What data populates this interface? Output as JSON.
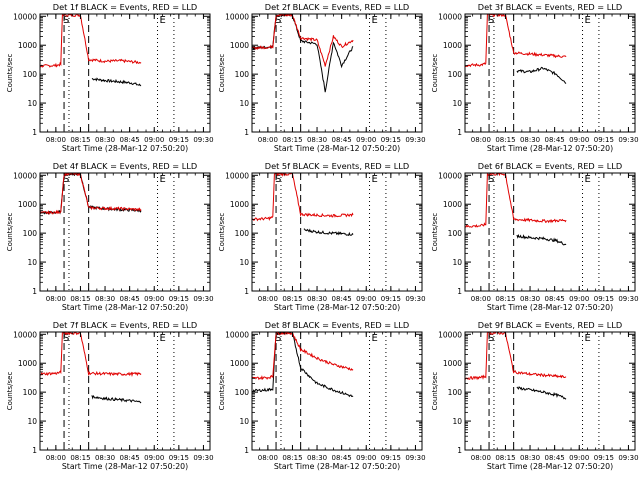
{
  "figure": {
    "ylabel": "Counts/sec",
    "xlabel": "Start Time (28-Mar-12 07:50:20)",
    "x_ticks": [
      "08:00",
      "08:15",
      "08:30",
      "08:45",
      "09:00",
      "09:15",
      "09:30"
    ],
    "y_ticks": [
      "1",
      "10",
      "100",
      "1000",
      "10000"
    ],
    "markers": [
      "S",
      "E"
    ],
    "colors": {
      "events": "#000000",
      "lld": "#e00000",
      "axis": "#000000"
    }
  },
  "chart_data": [
    {
      "type": "line",
      "title": "Det 1f BLACK = Events, RED = LLD",
      "y_scale": "log",
      "xlim": [
        "07:50:20",
        "09:34"
      ],
      "ylim": [
        1,
        12000
      ],
      "marker_lines": [
        {
          "x": "08:05",
          "style": "dashed"
        },
        {
          "x": "08:08",
          "style": "dotted"
        },
        {
          "x": "08:20",
          "style": "dashed"
        },
        {
          "x": "09:02",
          "style": "dotted"
        },
        {
          "x": "09:12",
          "style": "dotted"
        }
      ],
      "series": [
        {
          "name": "Events",
          "color": "#000000",
          "x": [
            "08:22",
            "08:30",
            "08:38",
            "08:46",
            "08:52"
          ],
          "values": [
            70,
            60,
            55,
            50,
            40
          ]
        },
        {
          "name": "LLD",
          "color": "#e00000",
          "x": [
            "07:50",
            "08:00",
            "08:03",
            "08:04",
            "08:15",
            "08:20",
            "08:30",
            "08:40",
            "08:52"
          ],
          "values": [
            190,
            200,
            220,
            11000,
            11000,
            320,
            280,
            290,
            250
          ]
        }
      ]
    },
    {
      "type": "line",
      "title": "Det 2f BLACK = Events, RED = LLD",
      "y_scale": "log",
      "xlim": [
        "07:50:20",
        "09:34"
      ],
      "ylim": [
        1,
        12000
      ],
      "marker_lines": [
        {
          "x": "08:05",
          "style": "dashed"
        },
        {
          "x": "08:08",
          "style": "dotted"
        },
        {
          "x": "08:20",
          "style": "dashed"
        },
        {
          "x": "09:02",
          "style": "dotted"
        },
        {
          "x": "09:12",
          "style": "dotted"
        }
      ],
      "series": [
        {
          "name": "Events",
          "color": "#000000",
          "x": [
            "07:50",
            "08:00",
            "08:03",
            "08:05",
            "08:15",
            "08:20",
            "08:30",
            "08:35",
            "08:40",
            "08:45",
            "08:52"
          ],
          "values": [
            800,
            850,
            900,
            11000,
            11000,
            1400,
            1100,
            25,
            1300,
            200,
            900
          ]
        },
        {
          "name": "LLD",
          "color": "#e00000",
          "x": [
            "07:50",
            "08:00",
            "08:03",
            "08:05",
            "08:15",
            "08:20",
            "08:30",
            "08:35",
            "08:40",
            "08:45",
            "08:52"
          ],
          "values": [
            800,
            850,
            900,
            11000,
            11000,
            1800,
            1500,
            200,
            2000,
            900,
            1500
          ]
        }
      ]
    },
    {
      "type": "line",
      "title": "Det 3f BLACK = Events, RED = LLD",
      "y_scale": "log",
      "xlim": [
        "07:50:20",
        "09:34"
      ],
      "ylim": [
        1,
        12000
      ],
      "marker_lines": [
        {
          "x": "08:05",
          "style": "dashed"
        },
        {
          "x": "08:08",
          "style": "dotted"
        },
        {
          "x": "08:20",
          "style": "dashed"
        },
        {
          "x": "09:02",
          "style": "dotted"
        },
        {
          "x": "09:12",
          "style": "dotted"
        }
      ],
      "series": [
        {
          "name": "Events",
          "color": "#000000",
          "x": [
            "08:22",
            "08:30",
            "08:38",
            "08:46",
            "08:52"
          ],
          "values": [
            130,
            120,
            160,
            100,
            50
          ]
        },
        {
          "name": "LLD",
          "color": "#e00000",
          "x": [
            "07:50",
            "08:00",
            "08:03",
            "08:04",
            "08:15",
            "08:20",
            "08:30",
            "08:40",
            "08:52"
          ],
          "values": [
            200,
            210,
            230,
            11000,
            11000,
            550,
            500,
            450,
            400
          ]
        }
      ]
    },
    {
      "type": "line",
      "title": "Det 4f BLACK = Events, RED = LLD",
      "y_scale": "log",
      "xlim": [
        "07:50:20",
        "09:34"
      ],
      "ylim": [
        1,
        12000
      ],
      "marker_lines": [
        {
          "x": "08:05",
          "style": "dashed"
        },
        {
          "x": "08:08",
          "style": "dotted"
        },
        {
          "x": "08:20",
          "style": "dashed"
        },
        {
          "x": "09:02",
          "style": "dotted"
        },
        {
          "x": "09:12",
          "style": "dotted"
        }
      ],
      "series": [
        {
          "name": "Events",
          "color": "#000000",
          "x": [
            "07:50",
            "08:00",
            "08:03",
            "08:05",
            "08:15",
            "08:20",
            "08:30",
            "08:40",
            "08:52"
          ],
          "values": [
            500,
            520,
            550,
            11000,
            11000,
            800,
            700,
            650,
            600
          ]
        },
        {
          "name": "LLD",
          "color": "#e00000",
          "x": [
            "07:50",
            "08:00",
            "08:03",
            "08:05",
            "08:15",
            "08:20",
            "08:30",
            "08:40",
            "08:52"
          ],
          "values": [
            500,
            520,
            550,
            11000,
            11000,
            750,
            720,
            700,
            650
          ]
        }
      ]
    },
    {
      "type": "line",
      "title": "Det 5f BLACK = Events, RED = LLD",
      "y_scale": "log",
      "xlim": [
        "07:50:20",
        "09:34"
      ],
      "ylim": [
        1,
        12000
      ],
      "marker_lines": [
        {
          "x": "08:05",
          "style": "dashed"
        },
        {
          "x": "08:08",
          "style": "dotted"
        },
        {
          "x": "08:20",
          "style": "dashed"
        },
        {
          "x": "09:02",
          "style": "dotted"
        },
        {
          "x": "09:12",
          "style": "dotted"
        }
      ],
      "series": [
        {
          "name": "Events",
          "color": "#000000",
          "x": [
            "08:22",
            "08:30",
            "08:38",
            "08:46",
            "08:52"
          ],
          "values": [
            130,
            110,
            100,
            95,
            90
          ]
        },
        {
          "name": "LLD",
          "color": "#e00000",
          "x": [
            "07:50",
            "08:00",
            "08:03",
            "08:04",
            "08:15",
            "08:20",
            "08:30",
            "08:40",
            "08:52"
          ],
          "values": [
            300,
            320,
            350,
            11000,
            11000,
            450,
            420,
            400,
            430
          ]
        }
      ]
    },
    {
      "type": "line",
      "title": "Det 6f BLACK = Events, RED = LLD",
      "y_scale": "log",
      "xlim": [
        "07:50:20",
        "09:34"
      ],
      "ylim": [
        1,
        12000
      ],
      "marker_lines": [
        {
          "x": "08:05",
          "style": "dashed"
        },
        {
          "x": "08:08",
          "style": "dotted"
        },
        {
          "x": "08:20",
          "style": "dashed"
        },
        {
          "x": "09:02",
          "style": "dotted"
        },
        {
          "x": "09:12",
          "style": "dotted"
        }
      ],
      "series": [
        {
          "name": "Events",
          "color": "#000000",
          "x": [
            "08:22",
            "08:30",
            "08:38",
            "08:46",
            "08:52"
          ],
          "values": [
            80,
            70,
            65,
            55,
            40
          ]
        },
        {
          "name": "LLD",
          "color": "#e00000",
          "x": [
            "07:50",
            "08:00",
            "08:03",
            "08:04",
            "08:15",
            "08:20",
            "08:30",
            "08:40",
            "08:52"
          ],
          "values": [
            170,
            180,
            200,
            11000,
            11000,
            300,
            280,
            260,
            280
          ]
        }
      ]
    },
    {
      "type": "line",
      "title": "Det 7f BLACK = Events, RED = LLD",
      "y_scale": "log",
      "xlim": [
        "07:50:20",
        "09:34"
      ],
      "ylim": [
        1,
        12000
      ],
      "marker_lines": [
        {
          "x": "08:05",
          "style": "dashed"
        },
        {
          "x": "08:08",
          "style": "dotted"
        },
        {
          "x": "08:20",
          "style": "dashed"
        },
        {
          "x": "09:02",
          "style": "dotted"
        },
        {
          "x": "09:12",
          "style": "dotted"
        }
      ],
      "series": [
        {
          "name": "Events",
          "color": "#000000",
          "x": [
            "08:22",
            "08:30",
            "08:38",
            "08:46",
            "08:52"
          ],
          "values": [
            70,
            60,
            55,
            50,
            45
          ]
        },
        {
          "name": "LLD",
          "color": "#e00000",
          "x": [
            "07:50",
            "08:00",
            "08:03",
            "08:04",
            "08:15",
            "08:20",
            "08:30",
            "08:40",
            "08:52"
          ],
          "values": [
            420,
            450,
            480,
            11000,
            11000,
            450,
            430,
            420,
            430
          ]
        }
      ]
    },
    {
      "type": "line",
      "title": "Det 8f BLACK = Events, RED = LLD",
      "y_scale": "log",
      "xlim": [
        "07:50:20",
        "09:34"
      ],
      "ylim": [
        1,
        12000
      ],
      "marker_lines": [
        {
          "x": "08:05",
          "style": "dashed"
        },
        {
          "x": "08:08",
          "style": "dotted"
        },
        {
          "x": "08:20",
          "style": "dashed"
        },
        {
          "x": "09:02",
          "style": "dotted"
        },
        {
          "x": "09:12",
          "style": "dotted"
        }
      ],
      "series": [
        {
          "name": "Events",
          "color": "#000000",
          "x": [
            "07:50",
            "08:00",
            "08:03",
            "08:05",
            "08:15",
            "08:20",
            "08:30",
            "08:40",
            "08:52"
          ],
          "values": [
            110,
            120,
            130,
            11000,
            11000,
            700,
            200,
            120,
            70
          ]
        },
        {
          "name": "LLD",
          "color": "#e00000",
          "x": [
            "07:50",
            "08:00",
            "08:03",
            "08:05",
            "08:15",
            "08:20",
            "08:30",
            "08:40",
            "08:52"
          ],
          "values": [
            300,
            320,
            350,
            11000,
            11000,
            3000,
            1500,
            900,
            600
          ]
        }
      ]
    },
    {
      "type": "line",
      "title": "Det 9f BLACK = Events, RED = LLD",
      "y_scale": "log",
      "xlim": [
        "07:50:20",
        "09:34"
      ],
      "ylim": [
        1,
        12000
      ],
      "marker_lines": [
        {
          "x": "08:05",
          "style": "dashed"
        },
        {
          "x": "08:08",
          "style": "dotted"
        },
        {
          "x": "08:20",
          "style": "dashed"
        },
        {
          "x": "09:02",
          "style": "dotted"
        },
        {
          "x": "09:12",
          "style": "dotted"
        }
      ],
      "series": [
        {
          "name": "Events",
          "color": "#000000",
          "x": [
            "08:22",
            "08:30",
            "08:38",
            "08:46",
            "08:52"
          ],
          "values": [
            140,
            120,
            100,
            80,
            60
          ]
        },
        {
          "name": "LLD",
          "color": "#e00000",
          "x": [
            "07:50",
            "08:00",
            "08:03",
            "08:04",
            "08:15",
            "08:20",
            "08:30",
            "08:40",
            "08:52"
          ],
          "values": [
            300,
            320,
            350,
            11000,
            11000,
            500,
            420,
            380,
            330
          ]
        }
      ]
    }
  ]
}
